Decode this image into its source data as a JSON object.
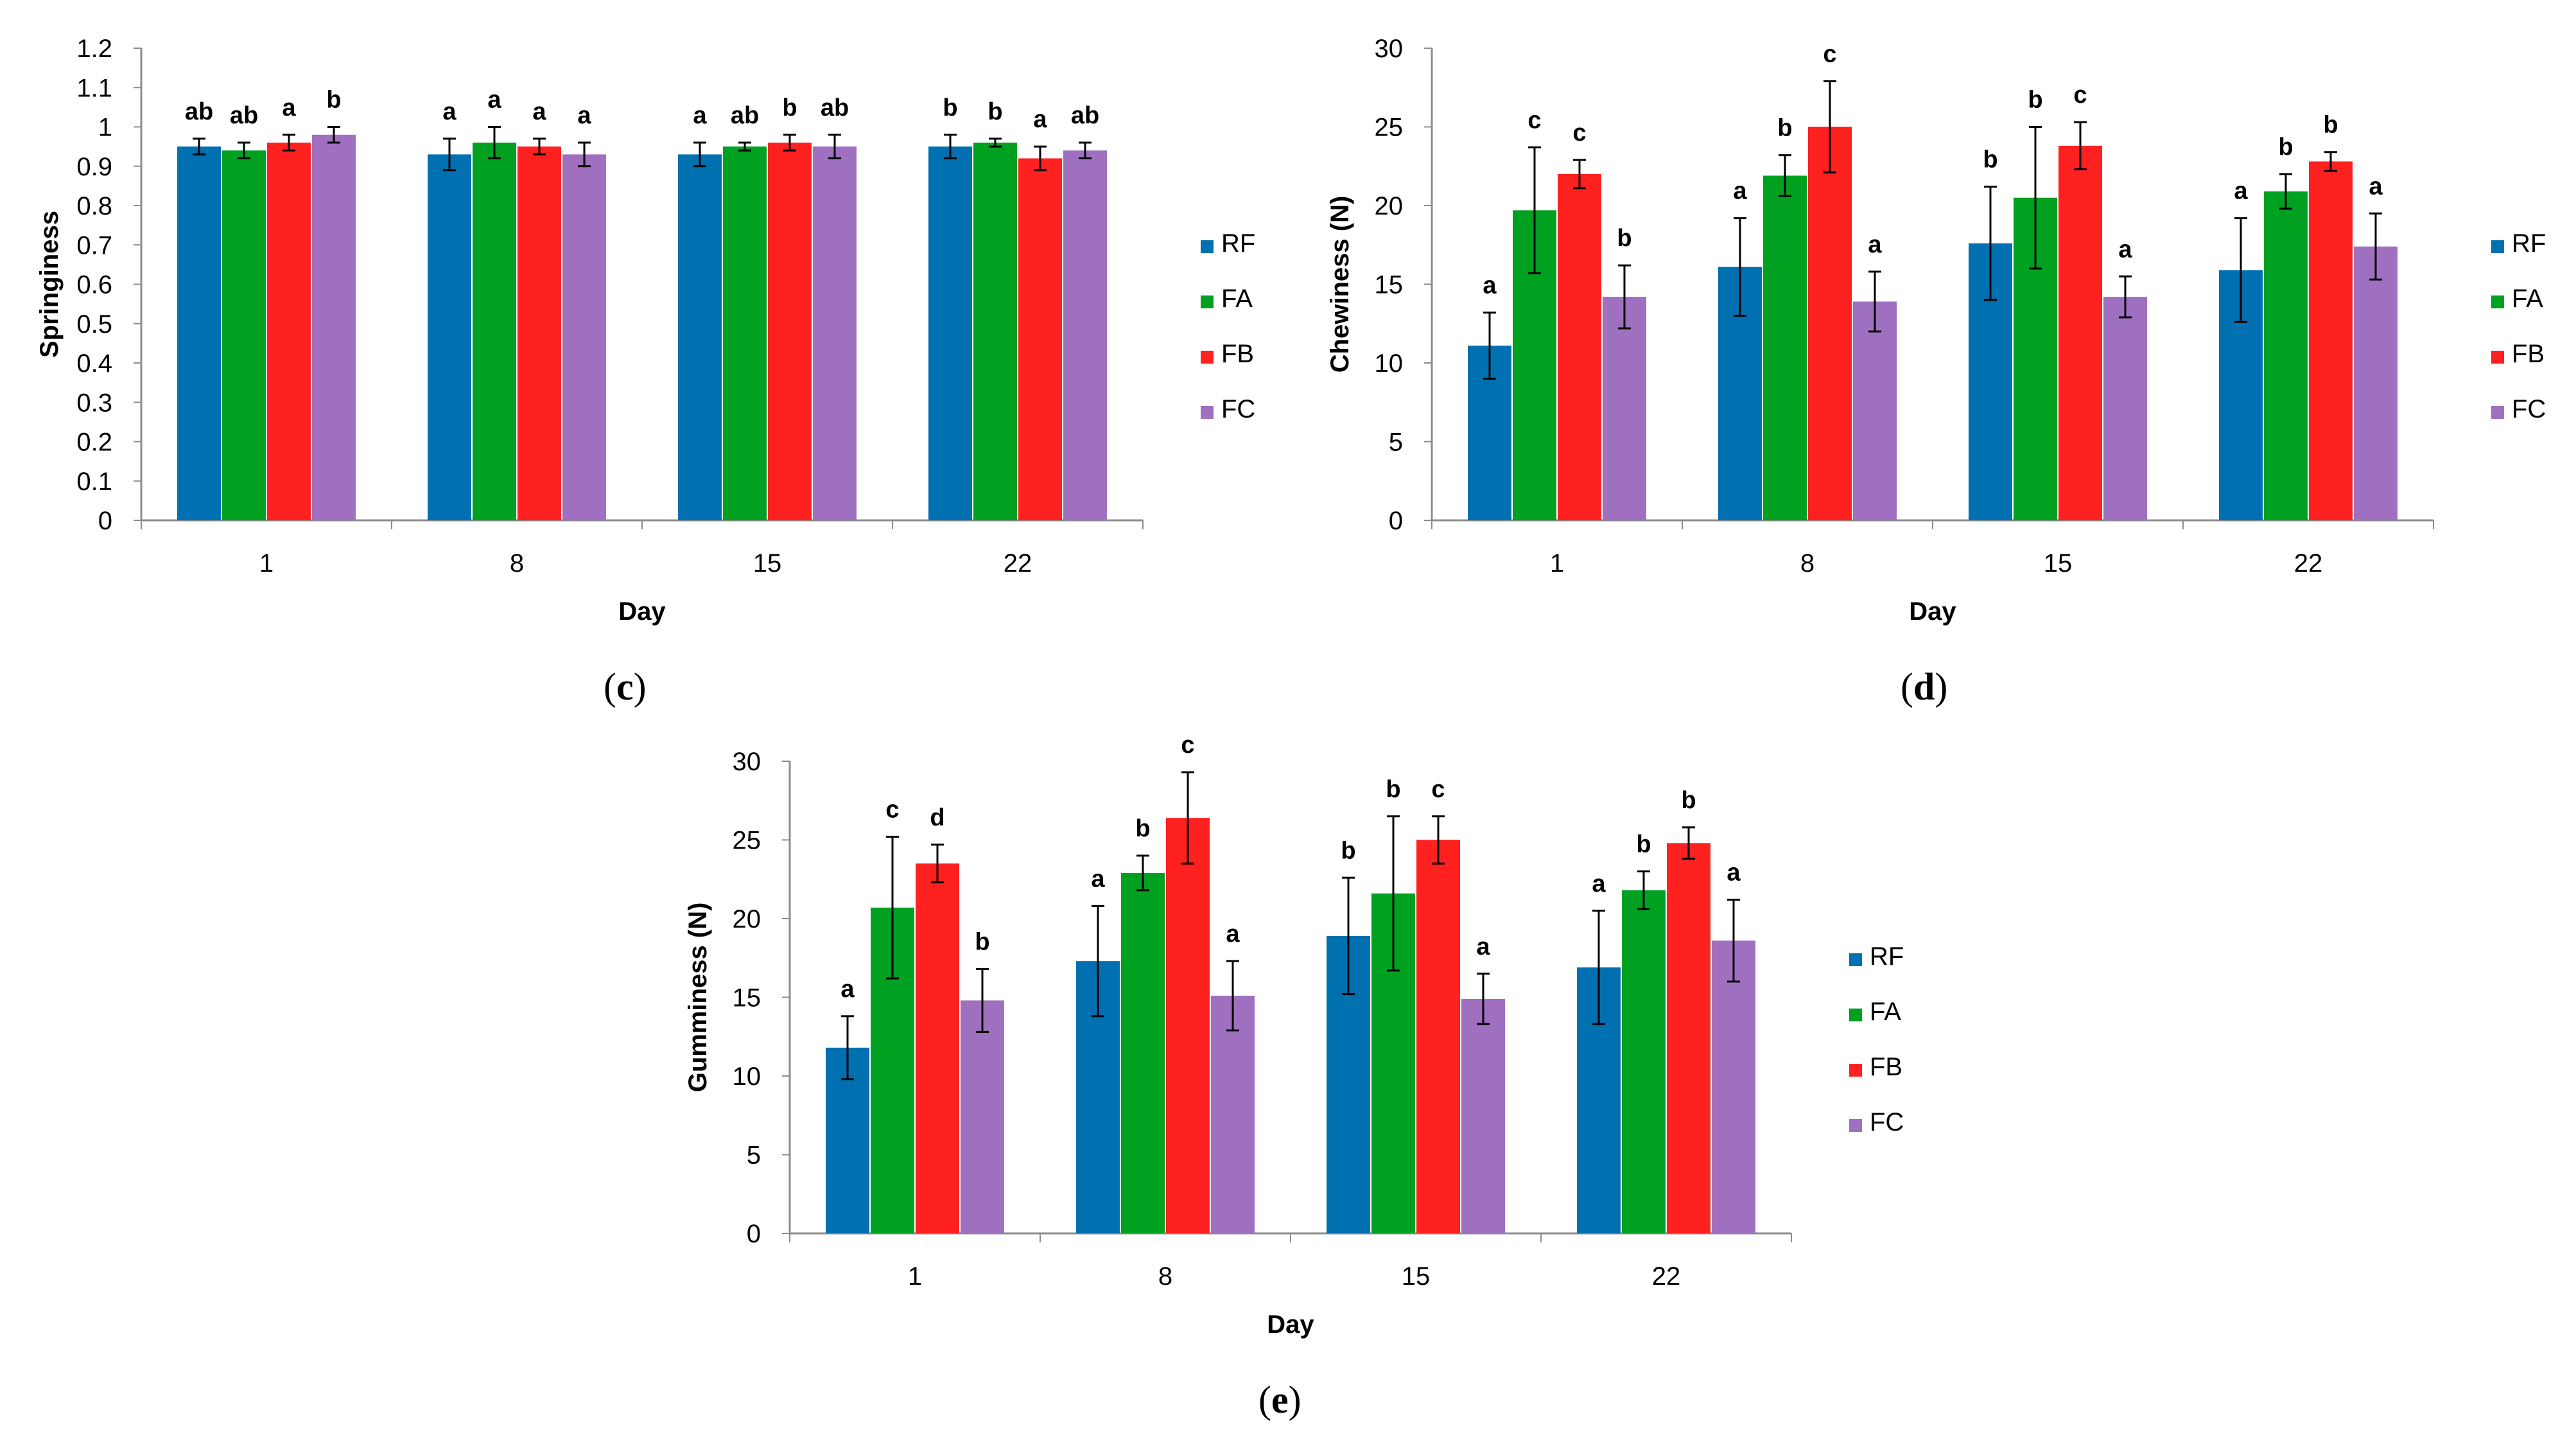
{
  "series_colors": {
    "RF": "#0070b0",
    "FA": "#00a020",
    "FB": "#ff2020",
    "FC": "#a070c0"
  },
  "chart_data": [
    {
      "panel": "c",
      "type": "bar",
      "xlabel": "Day",
      "ylabel": "Springiness",
      "categories": [
        "1",
        "8",
        "15",
        "22"
      ],
      "ylim": [
        0,
        1.2
      ],
      "yticks": [
        "0",
        "0.1",
        "0.2",
        "0.3",
        "0.4",
        "0.5",
        "0.6",
        "0.7",
        "0.8",
        "0.9",
        "1",
        "1.1",
        "1.2"
      ],
      "legend_position": "right",
      "series": [
        {
          "name": "RF",
          "values": [
            0.95,
            0.93,
            0.93,
            0.95
          ],
          "errors": [
            0.02,
            0.04,
            0.03,
            0.03
          ],
          "letters": [
            "ab",
            "a",
            "a",
            "b"
          ]
        },
        {
          "name": "FA",
          "values": [
            0.94,
            0.96,
            0.95,
            0.96
          ],
          "errors": [
            0.02,
            0.04,
            0.01,
            0.01
          ],
          "letters": [
            "ab",
            "a",
            "ab",
            "b"
          ]
        },
        {
          "name": "FB",
          "values": [
            0.96,
            0.95,
            0.96,
            0.92
          ],
          "errors": [
            0.02,
            0.02,
            0.02,
            0.03
          ],
          "letters": [
            "a",
            "a",
            "b",
            "a"
          ]
        },
        {
          "name": "FC",
          "values": [
            0.98,
            0.93,
            0.95,
            0.94
          ],
          "errors": [
            0.02,
            0.03,
            0.03,
            0.02
          ],
          "letters": [
            "b",
            "a",
            "ab",
            "ab"
          ]
        }
      ]
    },
    {
      "panel": "d",
      "type": "bar",
      "xlabel": "Day",
      "ylabel": "Chewiness (N)",
      "categories": [
        "1",
        "8",
        "15",
        "22"
      ],
      "ylim": [
        0,
        30
      ],
      "yticks": [
        "0",
        "5",
        "10",
        "15",
        "20",
        "25",
        "30"
      ],
      "legend_position": "right",
      "series": [
        {
          "name": "RF",
          "values": [
            11.1,
            16.1,
            17.6,
            15.9
          ],
          "errors": [
            2.1,
            3.1,
            3.6,
            3.3
          ],
          "letters": [
            "a",
            "a",
            "b",
            "a"
          ]
        },
        {
          "name": "FA",
          "values": [
            19.7,
            21.9,
            20.5,
            20.9
          ],
          "errors": [
            4.0,
            1.3,
            4.5,
            1.1
          ],
          "letters": [
            "c",
            "b",
            "b",
            "b"
          ]
        },
        {
          "name": "FB",
          "values": [
            22.0,
            25.0,
            23.8,
            22.8
          ],
          "errors": [
            0.9,
            2.9,
            1.5,
            0.6
          ],
          "letters": [
            "c",
            "c",
            "c",
            "b"
          ]
        },
        {
          "name": "FC",
          "values": [
            14.2,
            13.9,
            14.2,
            17.4
          ],
          "errors": [
            2.0,
            1.9,
            1.3,
            2.1
          ],
          "letters": [
            "b",
            "a",
            "a",
            "a"
          ]
        }
      ]
    },
    {
      "panel": "e",
      "type": "bar",
      "xlabel": "Day",
      "ylabel": "Gumminess (N)",
      "categories": [
        "1",
        "8",
        "15",
        "22"
      ],
      "ylim": [
        0,
        30
      ],
      "yticks": [
        "0",
        "5",
        "10",
        "15",
        "20",
        "25",
        "30"
      ],
      "legend_position": "right",
      "series": [
        {
          "name": "RF",
          "values": [
            11.8,
            17.3,
            18.9,
            16.9
          ],
          "errors": [
            2.0,
            3.5,
            3.7,
            3.6
          ],
          "letters": [
            "a",
            "a",
            "b",
            "a"
          ]
        },
        {
          "name": "FA",
          "values": [
            20.7,
            22.9,
            21.6,
            21.8
          ],
          "errors": [
            4.5,
            1.1,
            4.9,
            1.2
          ],
          "letters": [
            "c",
            "b",
            "b",
            "b"
          ]
        },
        {
          "name": "FB",
          "values": [
            23.5,
            26.4,
            25.0,
            24.8
          ],
          "errors": [
            1.2,
            2.9,
            1.5,
            1.0
          ],
          "letters": [
            "d",
            "c",
            "c",
            "b"
          ]
        },
        {
          "name": "FC",
          "values": [
            14.8,
            15.1,
            14.9,
            18.6
          ],
          "errors": [
            2.0,
            2.2,
            1.6,
            2.6
          ],
          "letters": [
            "b",
            "a",
            "a",
            "a"
          ]
        }
      ]
    }
  ],
  "captions": {
    "c": "c",
    "d": "d",
    "e": "e"
  }
}
